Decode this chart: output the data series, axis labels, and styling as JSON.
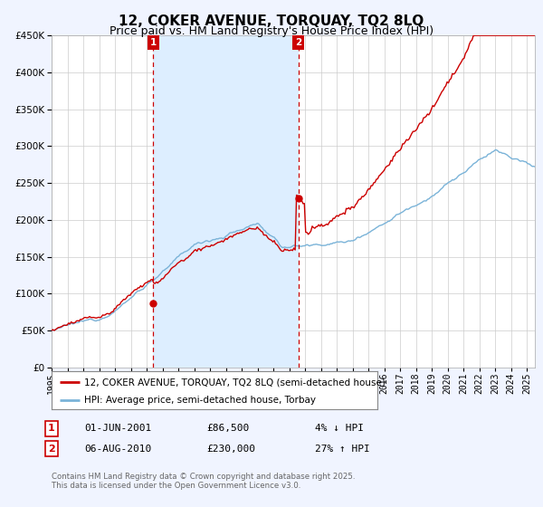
{
  "title": "12, COKER AVENUE, TORQUAY, TQ2 8LQ",
  "subtitle": "Price paid vs. HM Land Registry's House Price Index (HPI)",
  "ylim": [
    0,
    450000
  ],
  "yticks": [
    0,
    50000,
    100000,
    150000,
    200000,
    250000,
    300000,
    350000,
    400000,
    450000
  ],
  "ytick_labels": [
    "£0",
    "£50K",
    "£100K",
    "£150K",
    "£200K",
    "£250K",
    "£300K",
    "£350K",
    "£400K",
    "£450K"
  ],
  "hpi_color": "#7ab3d8",
  "price_color": "#cc0000",
  "vline_color": "#cc0000",
  "annotation_box_color": "#cc0000",
  "shade_color": "#ddeeff",
  "transaction1_x": 2001.42,
  "transaction2_x": 2010.58,
  "transaction1_y": 86500,
  "transaction2_y": 230000,
  "transaction1": {
    "label": "1",
    "date": "01-JUN-2001",
    "price": "£86,500",
    "pct": "4% ↓ HPI"
  },
  "transaction2": {
    "label": "2",
    "date": "06-AUG-2010",
    "price": "£230,000",
    "pct": "27% ↑ HPI"
  },
  "legend_line1": "12, COKER AVENUE, TORQUAY, TQ2 8LQ (semi-detached house)",
  "legend_line2": "HPI: Average price, semi-detached house, Torbay",
  "footer": "Contains HM Land Registry data © Crown copyright and database right 2025.\nThis data is licensed under the Open Government Licence v3.0.",
  "background_color": "#f0f4ff",
  "plot_bg_color": "#ffffff",
  "grid_color": "#cccccc",
  "title_fontsize": 11,
  "subtitle_fontsize": 9,
  "xmin": 1995,
  "xmax": 2025.5
}
